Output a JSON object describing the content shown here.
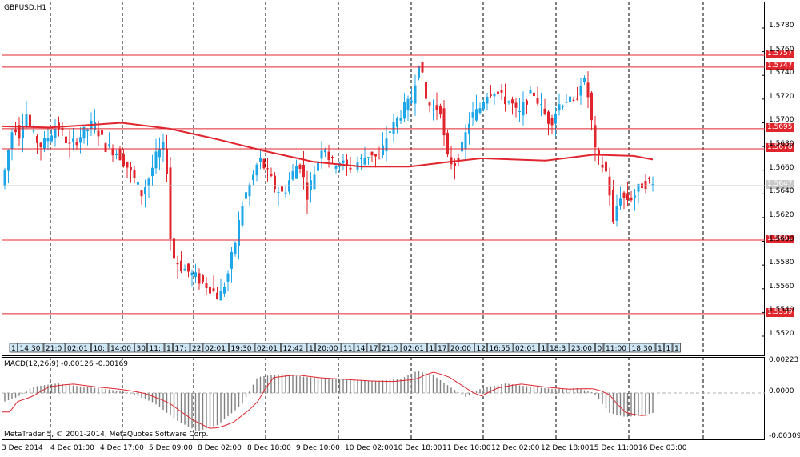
{
  "symbol_label": "GBPUSD,H1",
  "macd_label": "MACD(12,26,9) -0.00126 -0.00169",
  "copyright": "MetaTrader 5, © 2001-2014, MetaQuotes Software Corp.",
  "price_ticks": [
    "1.5780",
    "1.5760",
    "1.5740",
    "1.5720",
    "1.5700",
    "1.5680",
    "1.5660",
    "1.5640",
    "1.5620",
    "1.5600",
    "1.5580",
    "1.5560",
    "1.5540",
    "1.5520"
  ],
  "hlines": [
    {
      "label": "1.5757",
      "color": "#e0252d"
    },
    {
      "label": "1.5747",
      "color": "#e0252d"
    },
    {
      "label": "1.5695",
      "color": "#e0252d"
    },
    {
      "label": "1.5678",
      "color": "#e0252d"
    },
    {
      "label": "1.5647",
      "color": "#c8c8c8"
    },
    {
      "label": "1.5601",
      "color": "#e0252d"
    },
    {
      "label": "1.5539",
      "color": "#e0252d"
    }
  ],
  "macd_ticks": [
    "0.00223",
    "0.0000",
    "-0.00309"
  ],
  "time_axis": [
    "3 Dec 2014",
    "4 Dec 01:00",
    "4 Dec 17:00",
    "5 Dec 09:00",
    "8 Dec 02:00",
    "8 Dec 18:00",
    "9 Dec 10:00",
    "10 Dec 02:00",
    "10 Dec 18:00",
    "11 Dec 10:00",
    "12 Dec 02:00",
    "12 Dec 18:00",
    "15 Dec 11:00",
    "16 Dec 03:00"
  ],
  "event_markers": [
    "1",
    "14:30",
    "21:0",
    "02:01",
    "10:",
    "14:00",
    "30",
    "11:",
    "1",
    "17:",
    "22",
    "02:01",
    "19:30",
    "02:01",
    "12:42",
    "1",
    "20:00",
    "11",
    "14",
    "17",
    "21:0",
    "02:01",
    "1",
    "17",
    "20:00",
    "12",
    "16:55",
    "02:01",
    "1",
    "18:3",
    "23:00",
    "0",
    "11:00",
    "18:30",
    "1",
    "1",
    "1"
  ],
  "colors": {
    "bull": "#1ea7e8",
    "bear": "#e0252d",
    "ma": "#e0252d",
    "grid": "#000000",
    "hist": "#808080",
    "signal": "#e0252d"
  }
}
